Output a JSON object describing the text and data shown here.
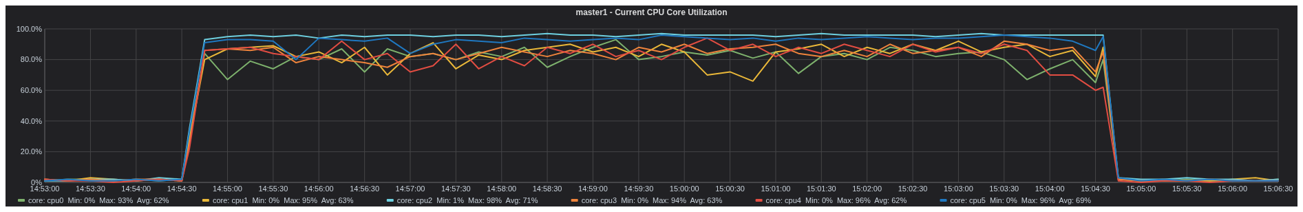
{
  "chart_data": {
    "type": "line",
    "title": "master1 - Current CPU Core Utilization",
    "x": [
      14.88333,
      14.8875,
      14.89167,
      14.89583,
      14.9,
      14.90417,
      14.90833,
      14.90972,
      14.9125,
      14.91667,
      14.92083,
      14.925,
      14.92917,
      14.93333,
      14.9375,
      14.94167,
      14.94583,
      14.95,
      14.95417,
      14.95833,
      14.9625,
      14.96667,
      14.97083,
      14.975,
      14.97917,
      14.98333,
      14.9875,
      14.99167,
      14.99583,
      15.0,
      15.00417,
      15.00833,
      15.0125,
      15.01667,
      15.02083,
      15.025,
      15.02917,
      15.03333,
      15.0375,
      15.04167,
      15.04583,
      15.05,
      15.05417,
      15.05833,
      15.0625,
      15.06667,
      15.07083,
      15.075,
      15.07639,
      15.07917,
      15.08333,
      15.0875,
      15.09167,
      15.09583,
      15.1,
      15.10417,
      15.10833
    ],
    "series": [
      {
        "name": "core: cpu0  Min: 0%  Max: 93%  Avg: 62%",
        "color": "#7eb26d",
        "values": [
          1,
          2,
          2,
          1,
          2,
          1,
          2,
          30,
          84,
          67,
          79,
          74,
          82,
          80,
          87,
          72,
          87,
          82,
          84,
          80,
          85,
          82,
          88,
          75,
          82,
          88,
          93,
          80,
          82,
          85,
          83,
          86,
          81,
          85,
          71,
          82,
          84,
          80,
          88,
          86,
          82,
          84,
          85,
          80,
          67,
          74,
          80,
          65,
          80,
          2,
          1,
          1,
          2,
          1,
          1,
          1,
          2
        ]
      },
      {
        "name": "core: cpu1  Min: 0%  Max: 95%  Avg: 63%",
        "color": "#eab839",
        "values": [
          2,
          1,
          3,
          2,
          1,
          2,
          1,
          28,
          80,
          87,
          88,
          89,
          82,
          85,
          78,
          88,
          70,
          84,
          91,
          74,
          83,
          80,
          86,
          88,
          90,
          85,
          88,
          82,
          90,
          85,
          70,
          72,
          66,
          85,
          87,
          90,
          82,
          88,
          84,
          90,
          86,
          92,
          85,
          88,
          90,
          82,
          86,
          69,
          88,
          2,
          1,
          2,
          1,
          1,
          2,
          3,
          1
        ]
      },
      {
        "name": "core: cpu2  Min: 1%  Max: 98%  Avg: 71%",
        "color": "#6ed0e0",
        "values": [
          1,
          1,
          2,
          2,
          1,
          3,
          2,
          35,
          93,
          95,
          96,
          95,
          96,
          94,
          96,
          95,
          96,
          96,
          95,
          96,
          96,
          95,
          96,
          97,
          96,
          96,
          95,
          96,
          97,
          96,
          96,
          96,
          96,
          95,
          96,
          97,
          96,
          96,
          96,
          96,
          95,
          96,
          97,
          96,
          96,
          96,
          96,
          96,
          96,
          3,
          2,
          2,
          3,
          2,
          2,
          1,
          2
        ]
      },
      {
        "name": "core: cpu3  Min: 0%  Max: 94%  Avg: 63%",
        "color": "#ef843c",
        "values": [
          2,
          1,
          2,
          1,
          2,
          2,
          1,
          25,
          86,
          87,
          86,
          88,
          78,
          82,
          80,
          78,
          75,
          82,
          84,
          80,
          84,
          88,
          85,
          82,
          86,
          84,
          80,
          88,
          85,
          90,
          84,
          87,
          88,
          90,
          84,
          82,
          86,
          82,
          90,
          84,
          86,
          88,
          82,
          92,
          90,
          86,
          88,
          72,
          85,
          2,
          1,
          1,
          1,
          2,
          1,
          1,
          1
        ]
      },
      {
        "name": "core: cpu4  Min: 0%  Max: 96%  Avg: 62%",
        "color": "#e24d42",
        "values": [
          2,
          1,
          1,
          0,
          1,
          2,
          1,
          22,
          86,
          87,
          88,
          84,
          82,
          80,
          92,
          80,
          84,
          72,
          76,
          90,
          74,
          82,
          76,
          88,
          84,
          90,
          82,
          86,
          80,
          88,
          94,
          86,
          90,
          82,
          88,
          84,
          90,
          86,
          82,
          90,
          85,
          88,
          84,
          90,
          86,
          70,
          70,
          60,
          62,
          1,
          0,
          1,
          1,
          0,
          1,
          1,
          1
        ]
      },
      {
        "name": "core: cpu5  Min: 0%  Max: 96%  Avg: 69%",
        "color": "#1f78c1",
        "values": [
          1,
          2,
          1,
          1,
          2,
          1,
          2,
          33,
          91,
          93,
          93,
          92,
          80,
          94,
          93,
          92,
          94,
          84,
          90,
          93,
          92,
          91,
          94,
          93,
          92,
          93,
          94,
          93,
          96,
          95,
          94,
          93,
          94,
          92,
          94,
          93,
          94,
          95,
          94,
          93,
          94,
          94,
          95,
          96,
          95,
          94,
          92,
          86,
          95,
          3,
          1,
          2,
          1,
          2,
          1,
          1,
          1
        ]
      }
    ],
    "xlim": [
      14.88333,
      15.10833
    ],
    "xticks": [
      {
        "value": 14.88333,
        "label": "14:53:00"
      },
      {
        "value": 14.89167,
        "label": "14:53:30"
      },
      {
        "value": 14.9,
        "label": "14:54:00"
      },
      {
        "value": 14.90833,
        "label": "14:54:30"
      },
      {
        "value": 14.91667,
        "label": "14:55:00"
      },
      {
        "value": 14.925,
        "label": "14:55:30"
      },
      {
        "value": 14.93333,
        "label": "14:56:00"
      },
      {
        "value": 14.94167,
        "label": "14:56:30"
      },
      {
        "value": 14.95,
        "label": "14:57:00"
      },
      {
        "value": 14.95833,
        "label": "14:57:30"
      },
      {
        "value": 14.96667,
        "label": "14:58:00"
      },
      {
        "value": 14.975,
        "label": "14:58:30"
      },
      {
        "value": 14.98333,
        "label": "14:59:00"
      },
      {
        "value": 14.99167,
        "label": "14:59:30"
      },
      {
        "value": 15.0,
        "label": "15:00:00"
      },
      {
        "value": 15.00833,
        "label": "15:00:30"
      },
      {
        "value": 15.01667,
        "label": "15:01:00"
      },
      {
        "value": 15.025,
        "label": "15:01:30"
      },
      {
        "value": 15.03333,
        "label": "15:02:00"
      },
      {
        "value": 15.04167,
        "label": "15:02:30"
      },
      {
        "value": 15.05,
        "label": "15:03:00"
      },
      {
        "value": 15.05833,
        "label": "15:03:30"
      },
      {
        "value": 15.06667,
        "label": "15:04:00"
      },
      {
        "value": 15.075,
        "label": "15:04:30"
      },
      {
        "value": 15.08333,
        "label": "15:05:00"
      },
      {
        "value": 15.09167,
        "label": "15:05:30"
      },
      {
        "value": 15.1,
        "label": "15:06:00"
      },
      {
        "value": 15.10833,
        "label": "15:06:30"
      }
    ],
    "ylim": [
      0,
      100
    ],
    "yticks": [
      {
        "value": 0,
        "label": "0%"
      },
      {
        "value": 20,
        "label": "20.0%"
      },
      {
        "value": 40,
        "label": "40.0%"
      },
      {
        "value": 60,
        "label": "60.0%"
      },
      {
        "value": 80,
        "label": "80.0%"
      },
      {
        "value": 100,
        "label": "100.0%"
      }
    ],
    "grid": true,
    "legend": "bottom"
  }
}
